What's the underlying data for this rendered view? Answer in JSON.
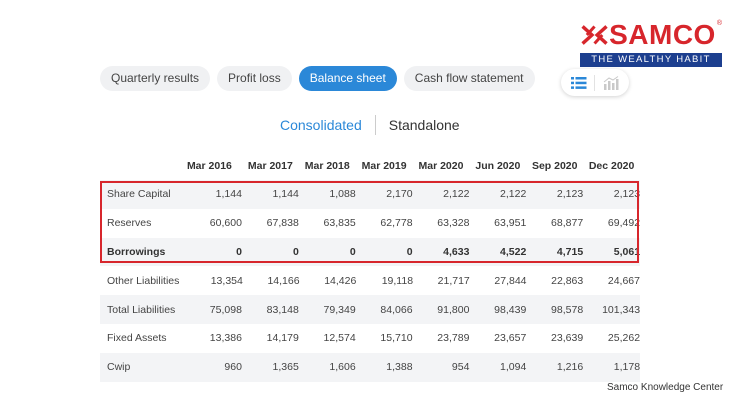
{
  "brand": {
    "name": "SAMCO",
    "registered": "®",
    "tagline": "THE WEALTHY HABIT",
    "color_red": "#d7262c",
    "color_blue": "#1d3f8f"
  },
  "tabs": [
    {
      "label": "Quarterly results",
      "active": false
    },
    {
      "label": "Profit loss",
      "active": false
    },
    {
      "label": "Balance sheet",
      "active": true
    },
    {
      "label": "Cash flow statement",
      "active": false
    }
  ],
  "view_toggle": {
    "options": [
      "table-view-icon",
      "chart-view-icon"
    ],
    "selected": "table-view-icon"
  },
  "subtoggle": {
    "consolidated": "Consolidated",
    "standalone": "Standalone",
    "selected": "Consolidated"
  },
  "table": {
    "columns": [
      "Mar 2016",
      "Mar 2017",
      "Mar 2018",
      "Mar 2019",
      "Mar 2020",
      "Jun 2020",
      "Sep 2020",
      "Dec 2020"
    ],
    "rows": [
      {
        "label": "Share Capital",
        "values": [
          "1,144",
          "1,144",
          "1,088",
          "2,170",
          "2,122",
          "2,122",
          "2,123",
          "2,123"
        ]
      },
      {
        "label": "Reserves",
        "values": [
          "60,600",
          "67,838",
          "63,835",
          "62,778",
          "63,328",
          "63,951",
          "68,877",
          "69,492"
        ]
      },
      {
        "label": "Borrowings",
        "values": [
          "0",
          "0",
          "0",
          "0",
          "4,633",
          "4,522",
          "4,715",
          "5,061"
        ]
      },
      {
        "label": "Other Liabilities",
        "values": [
          "13,354",
          "14,166",
          "14,426",
          "19,118",
          "21,717",
          "27,844",
          "22,863",
          "24,667"
        ]
      },
      {
        "label": "Total Liabilities",
        "values": [
          "75,098",
          "83,148",
          "79,349",
          "84,066",
          "91,800",
          "98,439",
          "98,578",
          "101,343"
        ]
      },
      {
        "label": "Fixed Assets",
        "values": [
          "13,386",
          "14,179",
          "12,574",
          "15,710",
          "23,789",
          "23,657",
          "23,639",
          "25,262"
        ]
      },
      {
        "label": "Cwip",
        "values": [
          "960",
          "1,365",
          "1,606",
          "1,388",
          "954",
          "1,094",
          "1,216",
          "1,178"
        ]
      }
    ]
  },
  "footer": {
    "note": "Samco Knowledge Center"
  }
}
